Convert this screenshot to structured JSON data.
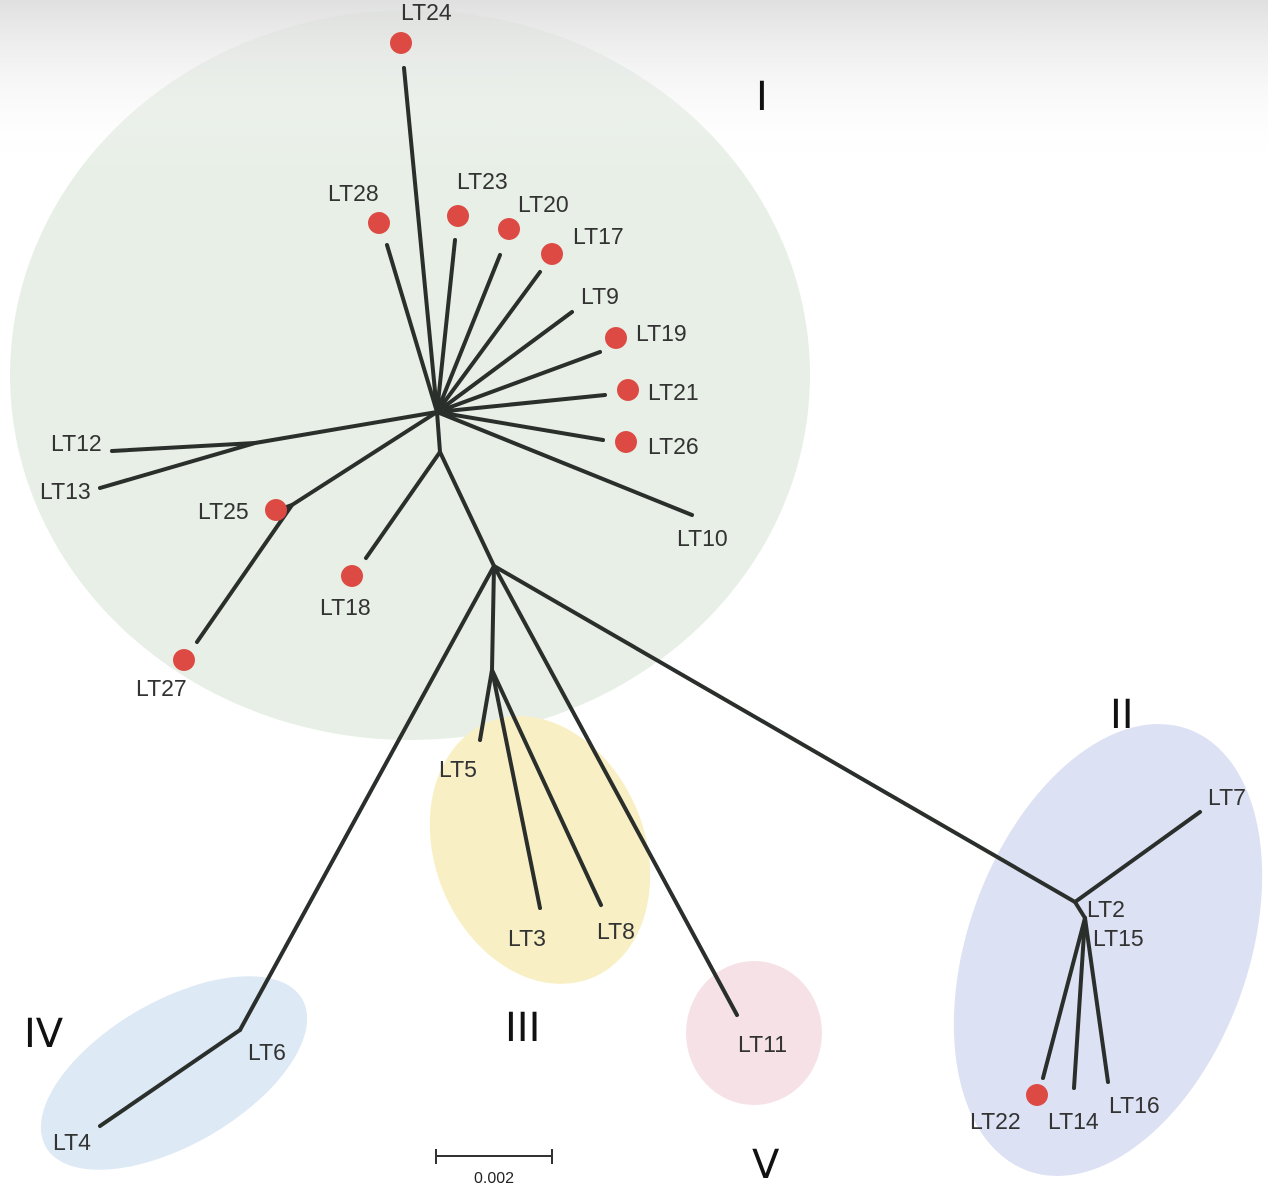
{
  "colors": {
    "branch": "#2b2f2c",
    "marker": "#dc4a43",
    "clade_I": "#e7efe6",
    "clade_II": "#dde1f4",
    "clade_III": "#f8f0c4",
    "clade_IV": "#dde9f5",
    "clade_V": "#f6e2e6"
  },
  "clades": [
    "I",
    "II",
    "III",
    "IV",
    "V"
  ],
  "leaves": {
    "LT24": "LT24",
    "LT28": "LT28",
    "LT23": "LT23",
    "LT20": "LT20",
    "LT17": "LT17",
    "LT9": "LT9",
    "LT19": "LT19",
    "LT21": "LT21",
    "LT26": "LT26",
    "LT10": "LT10",
    "LT12": "LT12",
    "LT13": "LT13",
    "LT25": "LT25",
    "LT18": "LT18",
    "LT27": "LT27",
    "LT5": "LT5",
    "LT3": "LT3",
    "LT8": "LT8",
    "LT11": "LT11",
    "LT6": "LT6",
    "LT4": "LT4",
    "LT7": "LT7",
    "LT2": "LT2",
    "LT15": "LT15",
    "LT22": "LT22",
    "LT14": "LT14",
    "LT16": "LT16"
  },
  "marked_leaves": [
    "LT24",
    "LT28",
    "LT23",
    "LT20",
    "LT17",
    "LT19",
    "LT21",
    "LT26",
    "LT25",
    "LT18",
    "LT27",
    "LT22"
  ],
  "scale_bar": {
    "label": "0.002"
  }
}
